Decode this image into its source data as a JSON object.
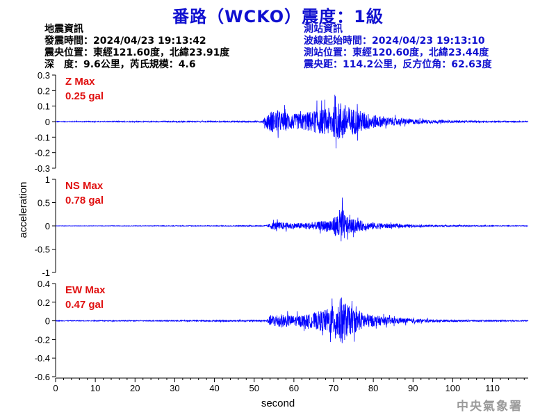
{
  "title": "番路（WCKO）震度：1級",
  "earthquake_info": {
    "heading": "地震資訊",
    "origin_time": "發震時間：2024/04/23 19:13:42",
    "epicenter": "震央位置：東經121.60度，北緯23.91度",
    "depth_magnitude": "深　度：9.6公里，芮氏規模：4.6"
  },
  "station_info": {
    "heading": "測站資訊",
    "wave_start": "波線起始時間：2024/04/23 19:13:10",
    "location": "測站位置：東經120.60度，北緯23.44度",
    "distance": "震央距：114.2公里，反方位角：62.63度"
  },
  "agency": "中央氣象署",
  "colors": {
    "title": "#1010d0",
    "trace": "#0000ff",
    "max_label": "#e01010",
    "station_info": "#1010d0"
  },
  "chart_data": [
    {
      "type": "line",
      "component": "Z",
      "max_label": "Z Max",
      "max_value": "0.25 gal",
      "ylim": [
        -0.3,
        0.3
      ],
      "yticks": [
        "0.3",
        "0.2",
        "0.1",
        "0",
        "-0.1",
        "-0.2",
        "-0.3"
      ],
      "xlim": [
        0,
        119
      ],
      "series_envelope": {
        "x": [
          0,
          30,
          52,
          53,
          54,
          56,
          58,
          60,
          62,
          64,
          66,
          68,
          70,
          71,
          72,
          73,
          74,
          76,
          78,
          80,
          84,
          88,
          92,
          96,
          100,
          110,
          119
        ],
        "amplitude": [
          0.004,
          0.006,
          0.008,
          0.07,
          0.13,
          0.12,
          0.11,
          0.09,
          0.1,
          0.12,
          0.14,
          0.15,
          0.18,
          0.21,
          0.25,
          0.2,
          0.17,
          0.14,
          0.11,
          0.08,
          0.05,
          0.035,
          0.025,
          0.018,
          0.012,
          0.008,
          0.006
        ]
      }
    },
    {
      "type": "line",
      "component": "NS",
      "max_label": "NS Max",
      "max_value": "0.78 gal",
      "ylim": [
        -1,
        1
      ],
      "yticks": [
        "1",
        "0.5",
        "0",
        "-0.5",
        "-1"
      ],
      "xlim": [
        0,
        119
      ],
      "series_envelope": {
        "x": [
          0,
          30,
          53,
          54,
          55,
          58,
          62,
          66,
          68,
          70,
          71,
          72,
          73,
          74,
          76,
          78,
          80,
          84,
          88,
          92,
          96,
          100,
          110,
          119
        ],
        "amplitude": [
          0.006,
          0.01,
          0.02,
          0.1,
          0.16,
          0.13,
          0.11,
          0.16,
          0.22,
          0.32,
          0.52,
          0.78,
          0.42,
          0.3,
          0.22,
          0.17,
          0.13,
          0.09,
          0.06,
          0.045,
          0.035,
          0.025,
          0.015,
          0.01
        ]
      }
    },
    {
      "type": "line",
      "component": "EW",
      "max_label": "EW Max",
      "max_value": "0.47 gal",
      "ylim": [
        -0.6,
        0.4
      ],
      "yticks": [
        "0.4",
        "0.2",
        "0",
        "-0.2",
        "-0.4",
        "-0.6"
      ],
      "xlim": [
        0,
        119
      ],
      "series_envelope": {
        "x": [
          0,
          30,
          53,
          54,
          56,
          58,
          60,
          62,
          64,
          66,
          68,
          70,
          71,
          72,
          73,
          74,
          76,
          78,
          80,
          84,
          88,
          92,
          96,
          100,
          110,
          119
        ],
        "amplitude": [
          0.006,
          0.01,
          0.015,
          0.1,
          0.14,
          0.12,
          0.1,
          0.11,
          0.13,
          0.18,
          0.22,
          0.3,
          0.4,
          0.47,
          0.36,
          0.28,
          0.2,
          0.15,
          0.11,
          0.07,
          0.05,
          0.035,
          0.025,
          0.018,
          0.012,
          0.009
        ]
      }
    }
  ],
  "x_axis": {
    "label": "second",
    "ticks": [
      "0",
      "10",
      "20",
      "30",
      "40",
      "50",
      "60",
      "70",
      "80",
      "90",
      "100",
      "110"
    ]
  },
  "y_axis": {
    "label": "acceleration"
  }
}
